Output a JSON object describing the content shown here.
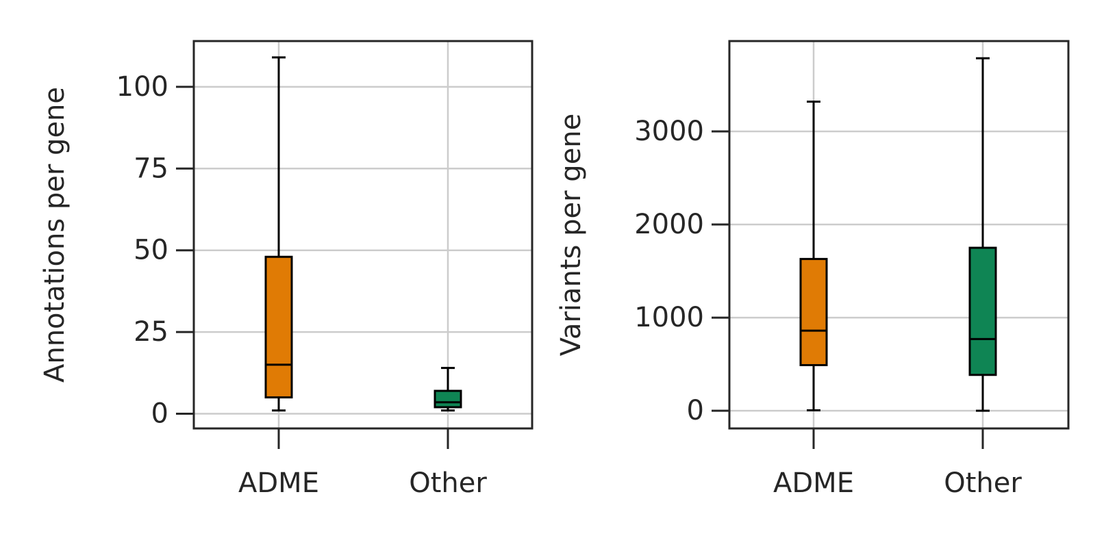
{
  "chart_data": [
    {
      "type": "box",
      "categories": [
        "ADME",
        "Other"
      ],
      "xlabel": "",
      "ylabel": "Annotations per gene",
      "ylim": [
        -4.5,
        114
      ],
      "yticks": [
        0,
        25,
        50,
        75,
        100
      ],
      "grid": true,
      "boxes": [
        {
          "category": "ADME",
          "whislo": 1,
          "q1": 5,
          "median": 15,
          "q3": 48,
          "whishi": 109,
          "color": "#E07B05"
        },
        {
          "category": "Other",
          "whislo": 1,
          "q1": 2,
          "median": 3.5,
          "q3": 7,
          "whishi": 14,
          "color": "#0F8554"
        }
      ]
    },
    {
      "type": "box",
      "categories": [
        "ADME",
        "Other"
      ],
      "xlabel": "",
      "ylabel": "Variants per gene",
      "ylim": [
        -190,
        3970
      ],
      "yticks": [
        0,
        1000,
        2000,
        3000
      ],
      "grid": true,
      "boxes": [
        {
          "category": "ADME",
          "whislo": 5,
          "q1": 490,
          "median": 860,
          "q3": 1630,
          "whishi": 3320,
          "color": "#E07B05"
        },
        {
          "category": "Other",
          "whislo": 0,
          "q1": 385,
          "median": 770,
          "q3": 1750,
          "whishi": 3785,
          "color": "#0F8554"
        }
      ]
    }
  ]
}
